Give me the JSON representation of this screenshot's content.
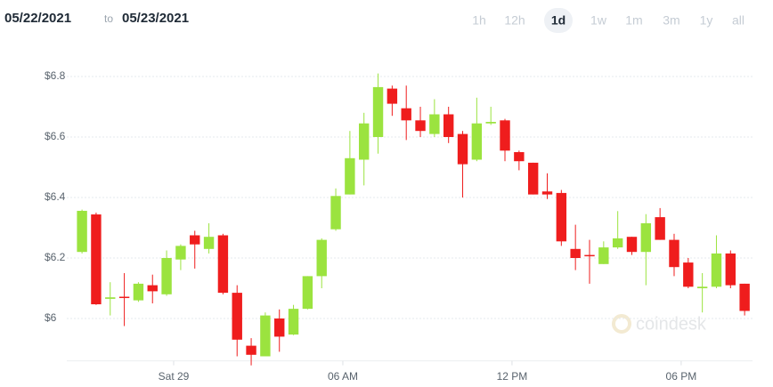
{
  "header": {
    "from": "05/22/2021",
    "to": "to",
    "until": "05/23/2021",
    "ranges": [
      "1h",
      "12h",
      "1d",
      "1w",
      "1m",
      "3m",
      "1y",
      "all"
    ],
    "selected_range": 2
  },
  "watermark": "coindesk",
  "chart_data": {
    "type": "candlestick",
    "x": [
      -3.25,
      -2.75,
      -2.25,
      -1.75,
      -1.25,
      -0.75,
      -0.25,
      0.25,
      0.75,
      1.25,
      1.75,
      2.25,
      2.75,
      3.25,
      3.75,
      4.25,
      4.75,
      5.25,
      5.75,
      6.25,
      6.75,
      7.25,
      7.75,
      8.25,
      8.75,
      9.25,
      9.75,
      10.25,
      10.75,
      11.25,
      11.75,
      12.25,
      12.75,
      13.25,
      13.75,
      14.25,
      14.75,
      15.25,
      15.75,
      16.25,
      16.75,
      17.25,
      17.75,
      18.25,
      18.75,
      19.25,
      19.75,
      20.25
    ],
    "open": [
      6.22,
      6.344,
      6.065,
      6.072,
      6.06,
      6.11,
      6.08,
      6.195,
      6.275,
      6.23,
      6.275,
      6.085,
      5.91,
      5.875,
      6.0,
      5.947,
      6.032,
      6.14,
      6.295,
      6.41,
      6.525,
      6.6,
      6.76,
      6.695,
      6.655,
      6.61,
      6.675,
      6.61,
      6.525,
      6.645,
      6.655,
      6.55,
      6.515,
      6.42,
      6.415,
      6.23,
      6.21,
      6.18,
      6.235,
      6.27,
      6.22,
      6.335,
      6.26,
      6.185,
      6.1,
      6.105,
      6.215,
      6.115
    ],
    "high": [
      6.36,
      6.35,
      6.12,
      6.15,
      6.12,
      6.145,
      6.225,
      6.245,
      6.29,
      6.315,
      6.28,
      6.11,
      5.935,
      6.02,
      6.03,
      6.045,
      6.14,
      6.265,
      6.43,
      6.62,
      6.68,
      6.81,
      6.77,
      6.77,
      6.7,
      6.725,
      6.7,
      6.62,
      6.73,
      6.7,
      6.66,
      6.555,
      6.515,
      6.48,
      6.425,
      6.31,
      6.26,
      6.255,
      6.355,
      6.27,
      6.345,
      6.365,
      6.28,
      6.2,
      6.15,
      6.275,
      6.225,
      6.115
    ],
    "low": [
      6.215,
      6.045,
      6.01,
      5.975,
      6.055,
      6.05,
      6.075,
      6.16,
      6.165,
      6.215,
      6.08,
      5.875,
      5.845,
      5.875,
      5.89,
      5.945,
      6.03,
      6.1,
      6.29,
      6.41,
      6.44,
      6.545,
      6.67,
      6.59,
      6.6,
      6.6,
      6.58,
      6.4,
      6.52,
      6.64,
      6.52,
      6.49,
      6.41,
      6.395,
      6.24,
      6.16,
      6.115,
      6.18,
      6.23,
      6.21,
      6.11,
      6.26,
      6.14,
      6.1,
      6.02,
      6.1,
      6.1,
      6.01
    ],
    "close": [
      6.356,
      6.047,
      6.07,
      6.07,
      6.115,
      6.09,
      6.2,
      6.24,
      6.245,
      6.27,
      6.085,
      5.93,
      5.88,
      6.01,
      5.94,
      6.032,
      6.14,
      6.26,
      6.405,
      6.53,
      6.645,
      6.765,
      6.71,
      6.655,
      6.62,
      6.675,
      6.6,
      6.51,
      6.645,
      6.65,
      6.555,
      6.52,
      6.41,
      6.41,
      6.255,
      6.2,
      6.208,
      6.235,
      6.265,
      6.22,
      6.315,
      6.26,
      6.17,
      6.105,
      6.105,
      6.215,
      6.11,
      6.025
    ],
    "up_color": "#9be33f",
    "down_color": "#ef1d1d",
    "xlim": [
      -3.79,
      20.53
    ],
    "xticks": [
      {
        "value": 0,
        "label": "Sat 29"
      },
      {
        "value": 6,
        "label": "06 AM"
      },
      {
        "value": 12,
        "label": "12 PM"
      },
      {
        "value": 18,
        "label": "06 PM"
      }
    ],
    "ylim": [
      5.86,
      6.89
    ],
    "yticks": [
      {
        "value": 6,
        "label": "$6"
      },
      {
        "value": 6.2,
        "label": "$6.2"
      },
      {
        "value": 6.4,
        "label": "$6.4"
      },
      {
        "value": 6.6,
        "label": "$6.6"
      },
      {
        "value": 6.8,
        "label": "$6.8"
      }
    ],
    "grid": true
  }
}
